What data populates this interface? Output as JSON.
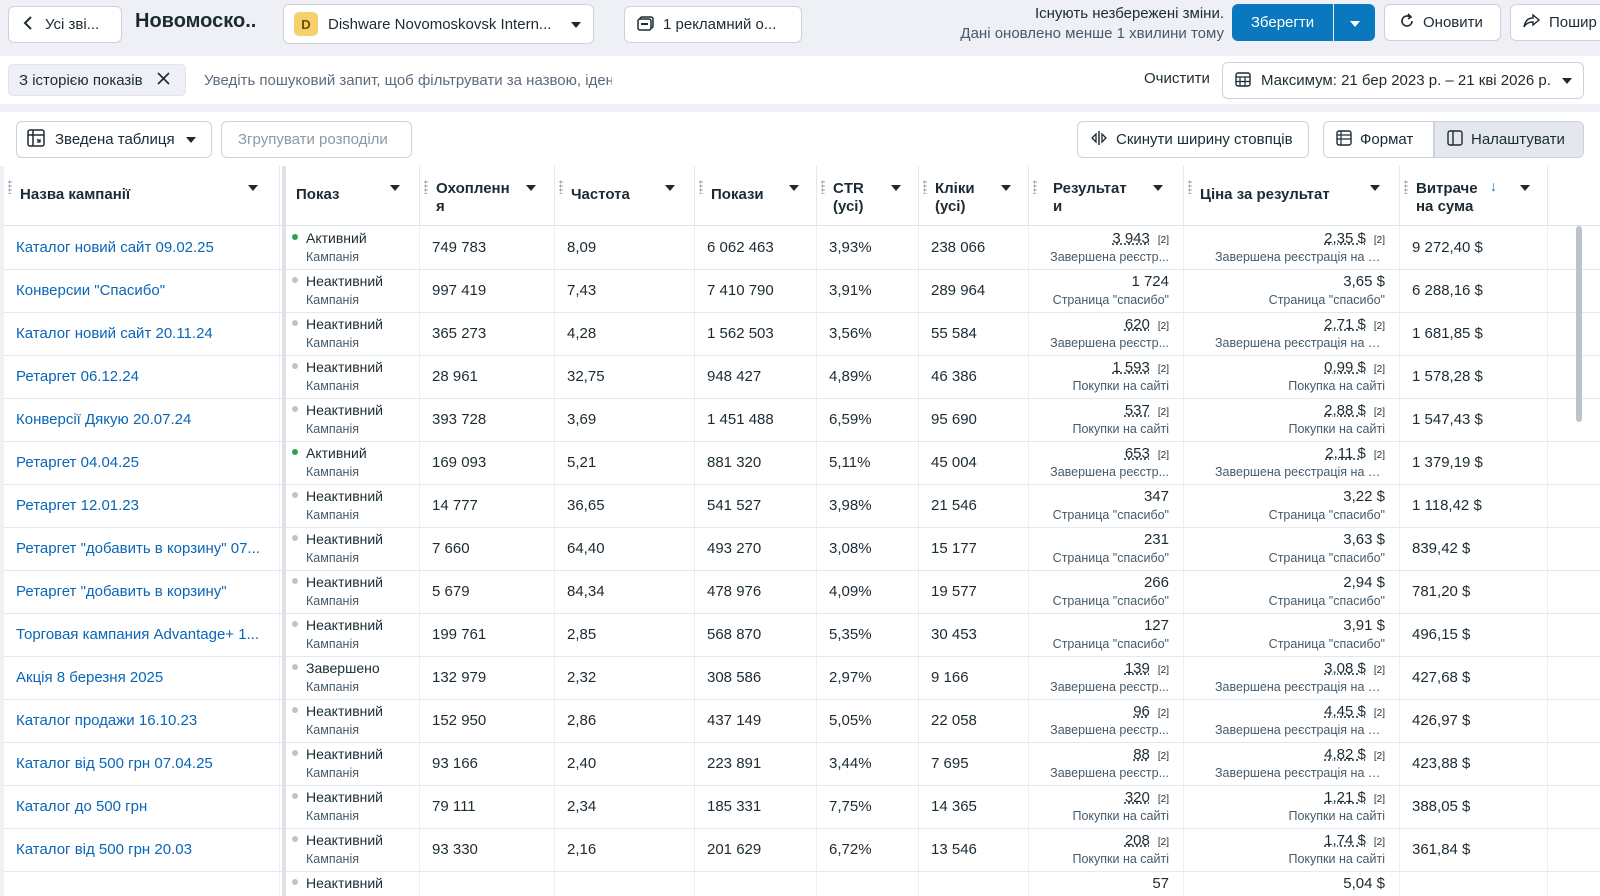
{
  "topbar": {
    "back_label": "Усі зві...",
    "title": "Новомоско..",
    "account_initial": "D",
    "account_name": "Dishware Novomoskovsk Intern...",
    "ads_selection": "1 рекламний о...",
    "unsaved_line1": "Існують незбережені зміни.",
    "unsaved_line2": "Дані оновлено менше 1 хвилини тому",
    "save_label": "Зберегти",
    "refresh_label": "Оновити",
    "share_label": "Пошир"
  },
  "filters": {
    "chip_label": "З історією показів",
    "search_placeholder": "Уведіть пошуковий запит, щоб фільтрувати за назвою, ідентифікатором або метрикою",
    "clear_label": "Очистити",
    "date_range": "Максимум: 21 бер 2023 р. – 21 кві 2026 р."
  },
  "toolbar": {
    "pivot_label": "Зведена таблиця",
    "group_label": "Згрупувати розподіли",
    "reset_label": "Скинути ширину стовпців",
    "format_label": "Формат",
    "configure_label": "Налаштувати"
  },
  "columns": {
    "name": "Назва кампанії",
    "delivery": "Показ",
    "reach_1": "Охопленн",
    "reach_2": "я",
    "frequency": "Частота",
    "impressions": "Покази",
    "ctr_1": "CTR",
    "ctr_2": "(усі)",
    "clicks_1": "Кліки",
    "clicks_2": "(усі)",
    "results_1": "Результат",
    "results_2": "и",
    "cpr": "Ціна за результат",
    "spend_1": "Витраче",
    "spend_2": "на сума"
  },
  "status_colors": {
    "active": "#31a24c",
    "inactive": "#bcc3cc",
    "done": "#bcc3cc"
  },
  "rows": [
    {
      "name": "Каталог новий сайт 09.02.25",
      "status": "Активний",
      "status_kind": "active",
      "sub": "Кампанія",
      "reach": "749 783",
      "freq": "8,09",
      "impr": "6 062 463",
      "ctr": "3,93%",
      "clicks": "238 066",
      "result": "3 943",
      "result_note": "[2]",
      "result_type": "Завершена реєстр...",
      "cpr": "2,35 $",
      "cpr_note": "[2]",
      "cpr_type": "Завершена реєстрація на сайті",
      "spend": "9 272,40 $"
    },
    {
      "name": "Конверсии \"Спасибо\"",
      "status": "Неактивний",
      "status_kind": "inactive",
      "sub": "Кампанія",
      "reach": "997 419",
      "freq": "7,43",
      "impr": "7 410 790",
      "ctr": "3,91%",
      "clicks": "289 964",
      "result": "1 724",
      "result_note": "",
      "result_type": "Страница \"спасибо\"",
      "cpr": "3,65 $",
      "cpr_note": "",
      "cpr_type": "Страница \"спасибо\"",
      "spend": "6 288,16 $"
    },
    {
      "name": "Каталог новий сайт 20.11.24",
      "status": "Неактивний",
      "status_kind": "inactive",
      "sub": "Кампанія",
      "reach": "365 273",
      "freq": "4,28",
      "impr": "1 562 503",
      "ctr": "3,56%",
      "clicks": "55 584",
      "result": "620",
      "result_note": "[2]",
      "result_type": "Завершена реєстр...",
      "cpr": "2,71 $",
      "cpr_note": "[2]",
      "cpr_type": "Завершена реєстрація на сайті",
      "spend": "1 681,85 $"
    },
    {
      "name": "Ретаргет 06.12.24",
      "status": "Неактивний",
      "status_kind": "inactive",
      "sub": "Кампанія",
      "reach": "28 961",
      "freq": "32,75",
      "impr": "948 427",
      "ctr": "4,89%",
      "clicks": "46 386",
      "result": "1 593",
      "result_note": "[2]",
      "result_type": "Покупки на сайті",
      "cpr": "0,99 $",
      "cpr_note": "[2]",
      "cpr_type": "Покупка на сайті",
      "spend": "1 578,28 $"
    },
    {
      "name": "Конверсії Дякую 20.07.24",
      "status": "Неактивний",
      "status_kind": "inactive",
      "sub": "Кампанія",
      "reach": "393 728",
      "freq": "3,69",
      "impr": "1 451 488",
      "ctr": "6,59%",
      "clicks": "95 690",
      "result": "537",
      "result_note": "[2]",
      "result_type": "Покупки на сайті",
      "cpr": "2,88 $",
      "cpr_note": "[2]",
      "cpr_type": "Покупки на сайті",
      "spend": "1 547,43 $"
    },
    {
      "name": "Ретаргет 04.04.25",
      "status": "Активний",
      "status_kind": "active",
      "sub": "Кампанія",
      "reach": "169 093",
      "freq": "5,21",
      "impr": "881 320",
      "ctr": "5,11%",
      "clicks": "45 004",
      "result": "653",
      "result_note": "[2]",
      "result_type": "Завершена реєстр...",
      "cpr": "2,11 $",
      "cpr_note": "[2]",
      "cpr_type": "Завершена реєстрація на сайті",
      "spend": "1 379,19 $"
    },
    {
      "name": "Ретаргет 12.01.23",
      "status": "Неактивний",
      "status_kind": "inactive",
      "sub": "Кампанія",
      "reach": "14 777",
      "freq": "36,65",
      "impr": "541 527",
      "ctr": "3,98%",
      "clicks": "21 546",
      "result": "347",
      "result_note": "",
      "result_type": "Страница \"спасибо\"",
      "cpr": "3,22 $",
      "cpr_note": "",
      "cpr_type": "Страница \"спасибо\"",
      "spend": "1 118,42 $"
    },
    {
      "name": "Ретаргет \"добавить в корзину\" 07...",
      "status": "Неактивний",
      "status_kind": "inactive",
      "sub": "Кампанія",
      "reach": "7 660",
      "freq": "64,40",
      "impr": "493 270",
      "ctr": "3,08%",
      "clicks": "15 177",
      "result": "231",
      "result_note": "",
      "result_type": "Страница \"спасибо\"",
      "cpr": "3,63 $",
      "cpr_note": "",
      "cpr_type": "Страница \"спасибо\"",
      "spend": "839,42 $"
    },
    {
      "name": "Ретаргет \"добавить в корзину\"",
      "status": "Неактивний",
      "status_kind": "inactive",
      "sub": "Кампанія",
      "reach": "5 679",
      "freq": "84,34",
      "impr": "478 976",
      "ctr": "4,09%",
      "clicks": "19 577",
      "result": "266",
      "result_note": "",
      "result_type": "Страница \"спасибо\"",
      "cpr": "2,94 $",
      "cpr_note": "",
      "cpr_type": "Страница \"спасибо\"",
      "spend": "781,20 $"
    },
    {
      "name": "Торговая кампания Advantage+ 1...",
      "status": "Неактивний",
      "status_kind": "inactive",
      "sub": "Кампанія",
      "reach": "199 761",
      "freq": "2,85",
      "impr": "568 870",
      "ctr": "5,35%",
      "clicks": "30 453",
      "result": "127",
      "result_note": "",
      "result_type": "Страница \"спасибо\"",
      "cpr": "3,91 $",
      "cpr_note": "",
      "cpr_type": "Страница \"спасибо\"",
      "spend": "496,15 $"
    },
    {
      "name": "Акція 8 березня 2025",
      "status": "Завершено",
      "status_kind": "done",
      "sub": "Кампанія",
      "reach": "132 979",
      "freq": "2,32",
      "impr": "308 586",
      "ctr": "2,97%",
      "clicks": "9 166",
      "result": "139",
      "result_note": "[2]",
      "result_type": "Завершена реєстр...",
      "cpr": "3,08 $",
      "cpr_note": "[2]",
      "cpr_type": "Завершена реєстрація на сайті",
      "spend": "427,68 $"
    },
    {
      "name": "Каталог продажи 16.10.23",
      "status": "Неактивний",
      "status_kind": "inactive",
      "sub": "Кампанія",
      "reach": "152 950",
      "freq": "2,86",
      "impr": "437 149",
      "ctr": "5,05%",
      "clicks": "22 058",
      "result": "96",
      "result_note": "[2]",
      "result_type": "Завершена реєстр...",
      "cpr": "4,45 $",
      "cpr_note": "[2]",
      "cpr_type": "Завершена реєстрація на сайті",
      "spend": "426,97 $"
    },
    {
      "name": "Каталог від 500 грн 07.04.25",
      "status": "Неактивний",
      "status_kind": "inactive",
      "sub": "Кампанія",
      "reach": "93 166",
      "freq": "2,40",
      "impr": "223 891",
      "ctr": "3,44%",
      "clicks": "7 695",
      "result": "88",
      "result_note": "[2]",
      "result_type": "Завершена реєстр...",
      "cpr": "4,82 $",
      "cpr_note": "[2]",
      "cpr_type": "Завершена реєстрація на сайті",
      "spend": "423,88 $"
    },
    {
      "name": "Каталог до 500 грн",
      "status": "Неактивний",
      "status_kind": "inactive",
      "sub": "Кампанія",
      "reach": "79 111",
      "freq": "2,34",
      "impr": "185 331",
      "ctr": "7,75%",
      "clicks": "14 365",
      "result": "320",
      "result_note": "[2]",
      "result_type": "Покупки на сайті",
      "cpr": "1,21 $",
      "cpr_note": "[2]",
      "cpr_type": "Покупки на сайті",
      "spend": "388,05 $"
    },
    {
      "name": "Каталог від 500 грн 20.03",
      "status": "Неактивний",
      "status_kind": "inactive",
      "sub": "Кампанія",
      "reach": "93 330",
      "freq": "2,16",
      "impr": "201 629",
      "ctr": "6,72%",
      "clicks": "13 546",
      "result": "208",
      "result_note": "[2]",
      "result_type": "Покупки на сайті",
      "cpr": "1,74 $",
      "cpr_note": "[2]",
      "cpr_type": "Покупки на сайті",
      "spend": "361,84 $"
    },
    {
      "name": "",
      "status": "Неактивний",
      "status_kind": "inactive",
      "sub": "",
      "reach": "",
      "freq": "",
      "impr": "",
      "ctr": "",
      "clicks": "",
      "result": "57",
      "result_note": "",
      "result_type": "",
      "cpr": "5,04 $",
      "cpr_note": "",
      "cpr_type": "",
      "spend": ""
    }
  ]
}
